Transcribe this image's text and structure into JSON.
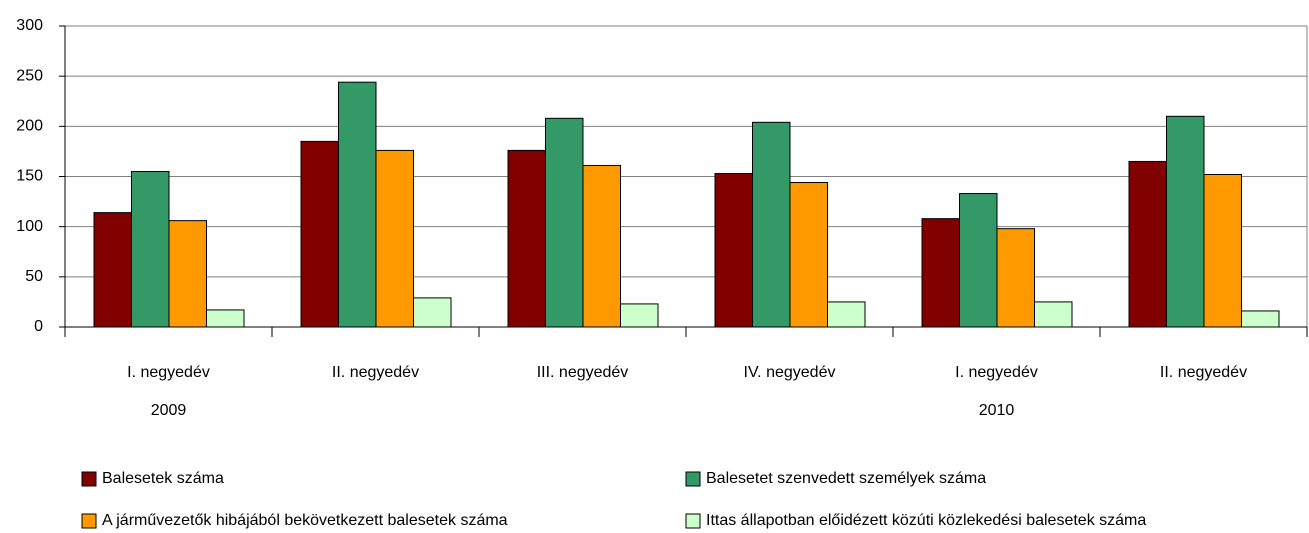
{
  "chart_data": {
    "type": "bar",
    "categories": [
      "I. negyedév",
      "II. negyedév",
      "III. negyedév",
      "IV. negyedév",
      "I. negyedév",
      "II. negyedév"
    ],
    "year_labels": [
      "2009",
      null,
      null,
      null,
      "2010",
      null
    ],
    "series": [
      {
        "name": "Balesetek száma",
        "color": "#800000",
        "values": [
          114,
          185,
          176,
          153,
          108,
          165
        ]
      },
      {
        "name": "Balesetet szenvedett személyek száma",
        "color": "#339966",
        "values": [
          155,
          244,
          208,
          204,
          133,
          210
        ]
      },
      {
        "name": "A járművezetők hibájából bekövetkezett balesetek száma",
        "color": "#ff9900",
        "values": [
          106,
          176,
          161,
          144,
          98,
          152
        ]
      },
      {
        "name": "Ittas állapotban előidézett közúti közlekedési balesetek száma",
        "color": "#ccffcc",
        "values": [
          17,
          29,
          23,
          25,
          25,
          16
        ]
      }
    ],
    "ylim": [
      0,
      300
    ],
    "yticks": [
      0,
      50,
      100,
      150,
      200,
      250,
      300
    ],
    "grid": true,
    "legend": "bottom"
  }
}
